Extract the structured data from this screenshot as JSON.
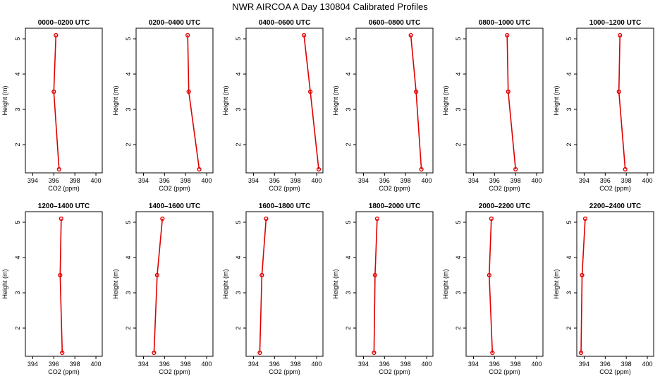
{
  "suptitle": "NWR AIRCOA A  Day 130804  Calibrated Profiles",
  "colors": {
    "series": "#e00000",
    "axis": "#000000",
    "background": "#ffffff"
  },
  "chart_data": [
    {
      "type": "line",
      "title": "0000–0200 UTC",
      "xlabel": "CO2 (ppm)",
      "ylabel": "Height (m)",
      "xlim": [
        393.3,
        400.6
      ],
      "ylim": [
        1.2,
        5.3
      ],
      "xticks": [
        "394",
        "396",
        "398",
        "400"
      ],
      "yticks": [
        "2",
        "3",
        "4",
        "5"
      ],
      "x": [
        396.5,
        396.0,
        396.2
      ],
      "y": [
        1.3,
        3.5,
        5.1
      ]
    },
    {
      "type": "line",
      "title": "0200–0400 UTC",
      "xlabel": "CO2 (ppm)",
      "ylabel": "Height (m)",
      "xlim": [
        393.3,
        400.6
      ],
      "ylim": [
        1.2,
        5.3
      ],
      "xticks": [
        "394",
        "396",
        "398",
        "400"
      ],
      "yticks": [
        "2",
        "3",
        "4",
        "5"
      ],
      "x": [
        399.3,
        398.3,
        398.2
      ],
      "y": [
        1.3,
        3.5,
        5.1
      ]
    },
    {
      "type": "line",
      "title": "0400–0600 UTC",
      "xlabel": "CO2 (ppm)",
      "ylabel": "Height (m)",
      "xlim": [
        393.3,
        400.6
      ],
      "ylim": [
        1.2,
        5.3
      ],
      "xticks": [
        "394",
        "396",
        "398",
        "400"
      ],
      "yticks": [
        "2",
        "3",
        "4",
        "5"
      ],
      "x": [
        400.2,
        399.4,
        398.8
      ],
      "y": [
        1.3,
        3.5,
        5.1
      ]
    },
    {
      "type": "line",
      "title": "0600–0800 UTC",
      "xlabel": "CO2 (ppm)",
      "ylabel": "Height (m)",
      "xlim": [
        393.3,
        400.6
      ],
      "ylim": [
        1.2,
        5.3
      ],
      "xticks": [
        "394",
        "396",
        "398",
        "400"
      ],
      "yticks": [
        "2",
        "3",
        "4",
        "5"
      ],
      "x": [
        399.5,
        399.0,
        398.5
      ],
      "y": [
        1.3,
        3.5,
        5.1
      ]
    },
    {
      "type": "line",
      "title": "0800–1000 UTC",
      "xlabel": "CO2 (ppm)",
      "ylabel": "Height (m)",
      "xlim": [
        393.3,
        400.6
      ],
      "ylim": [
        1.2,
        5.3
      ],
      "xticks": [
        "394",
        "396",
        "398",
        "400"
      ],
      "yticks": [
        "2",
        "3",
        "4",
        "5"
      ],
      "x": [
        398.0,
        397.3,
        397.2
      ],
      "y": [
        1.3,
        3.5,
        5.1
      ]
    },
    {
      "type": "line",
      "title": "1000–1200 UTC",
      "xlabel": "CO2 (ppm)",
      "ylabel": "Height (m)",
      "xlim": [
        393.3,
        400.6
      ],
      "ylim": [
        1.2,
        5.3
      ],
      "xticks": [
        "394",
        "396",
        "398",
        "400"
      ],
      "yticks": [
        "2",
        "3",
        "4",
        "5"
      ],
      "x": [
        397.9,
        397.3,
        397.4
      ],
      "y": [
        1.3,
        3.5,
        5.1
      ]
    },
    {
      "type": "line",
      "title": "1200–1400 UTC",
      "xlabel": "CO2 (ppm)",
      "ylabel": "Height (m)",
      "xlim": [
        393.3,
        400.6
      ],
      "ylim": [
        1.2,
        5.3
      ],
      "xticks": [
        "394",
        "396",
        "398",
        "400"
      ],
      "yticks": [
        "2",
        "3",
        "4",
        "5"
      ],
      "x": [
        396.8,
        396.6,
        396.7
      ],
      "y": [
        1.3,
        3.5,
        5.1
      ]
    },
    {
      "type": "line",
      "title": "1400–1600 UTC",
      "xlabel": "CO2 (ppm)",
      "ylabel": "Height (m)",
      "xlim": [
        393.3,
        400.6
      ],
      "ylim": [
        1.2,
        5.3
      ],
      "xticks": [
        "394",
        "396",
        "398",
        "400"
      ],
      "yticks": [
        "2",
        "3",
        "4",
        "5"
      ],
      "x": [
        395.0,
        395.3,
        395.8
      ],
      "y": [
        1.3,
        3.5,
        5.1
      ]
    },
    {
      "type": "line",
      "title": "1600–1800 UTC",
      "xlabel": "CO2 (ppm)",
      "ylabel": "Height (m)",
      "xlim": [
        393.3,
        400.6
      ],
      "ylim": [
        1.2,
        5.3
      ],
      "xticks": [
        "394",
        "396",
        "398",
        "400"
      ],
      "yticks": [
        "2",
        "3",
        "4",
        "5"
      ],
      "x": [
        394.6,
        394.8,
        395.2
      ],
      "y": [
        1.3,
        3.5,
        5.1
      ]
    },
    {
      "type": "line",
      "title": "1800–2000 UTC",
      "xlabel": "CO2 (ppm)",
      "ylabel": "Height (m)",
      "xlim": [
        393.3,
        400.6
      ],
      "ylim": [
        1.2,
        5.3
      ],
      "xticks": [
        "394",
        "396",
        "398",
        "400"
      ],
      "yticks": [
        "2",
        "3",
        "4",
        "5"
      ],
      "x": [
        395.0,
        395.1,
        395.3
      ],
      "y": [
        1.3,
        3.5,
        5.1
      ]
    },
    {
      "type": "line",
      "title": "2000–2200 UTC",
      "xlabel": "CO2 (ppm)",
      "ylabel": "Height (m)",
      "xlim": [
        393.3,
        400.6
      ],
      "ylim": [
        1.2,
        5.3
      ],
      "xticks": [
        "394",
        "396",
        "398",
        "400"
      ],
      "yticks": [
        "2",
        "3",
        "4",
        "5"
      ],
      "x": [
        395.8,
        395.5,
        395.7
      ],
      "y": [
        1.3,
        3.5,
        5.1
      ]
    },
    {
      "type": "line",
      "title": "2200–2400 UTC",
      "xlabel": "CO2 (ppm)",
      "ylabel": "Height (m)",
      "xlim": [
        393.3,
        400.6
      ],
      "ylim": [
        1.2,
        5.3
      ],
      "xticks": [
        "394",
        "396",
        "398",
        "400"
      ],
      "yticks": [
        "2",
        "3",
        "4",
        "5"
      ],
      "x": [
        393.7,
        393.8,
        394.1
      ],
      "y": [
        1.3,
        3.5,
        5.1
      ]
    }
  ]
}
